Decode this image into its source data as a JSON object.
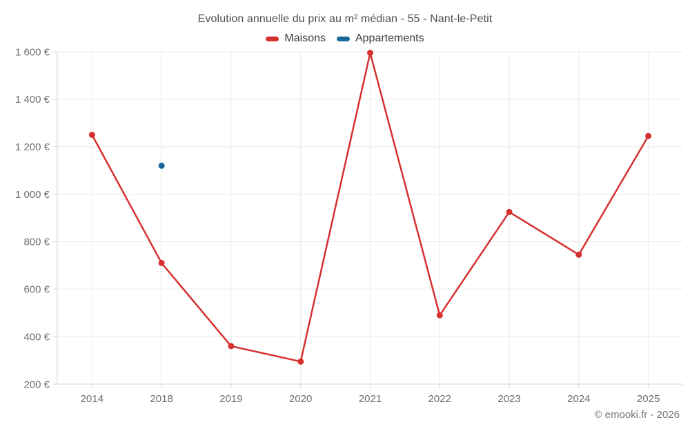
{
  "chart_data": {
    "type": "line",
    "title": "Evolution annuelle du prix au m² médian - 55 - Nant-le-Petit",
    "categories": [
      "2014",
      "2018",
      "2019",
      "2020",
      "2021",
      "2022",
      "2023",
      "2024",
      "2025"
    ],
    "series": [
      {
        "name": "Maisons",
        "color": "#d6302f",
        "values": [
          1250,
          710,
          360,
          295,
          1595,
          490,
          925,
          745,
          1245
        ]
      },
      {
        "name": "Appartements",
        "color": "#17699c",
        "values": [
          null,
          1120,
          null,
          null,
          null,
          null,
          null,
          null,
          null
        ]
      }
    ],
    "ylim": [
      200,
      1600
    ],
    "ytick_step": 200,
    "ytick_suffix": " €",
    "grid": true,
    "legend_position": "top",
    "point_radius": 4.5,
    "line_width": 2.5
  },
  "footer": {
    "copyright": "© emooki.fr - 2026"
  },
  "theme": {
    "grid_color": "#eaeaea",
    "axis_color": "#d6d6d6",
    "tick_label_color": "#6e6e6e",
    "title_color": "#4e4e4e",
    "legend_text_color": "#3b3b3b",
    "footer_text_color": "#757575",
    "background": "#ffffff"
  }
}
